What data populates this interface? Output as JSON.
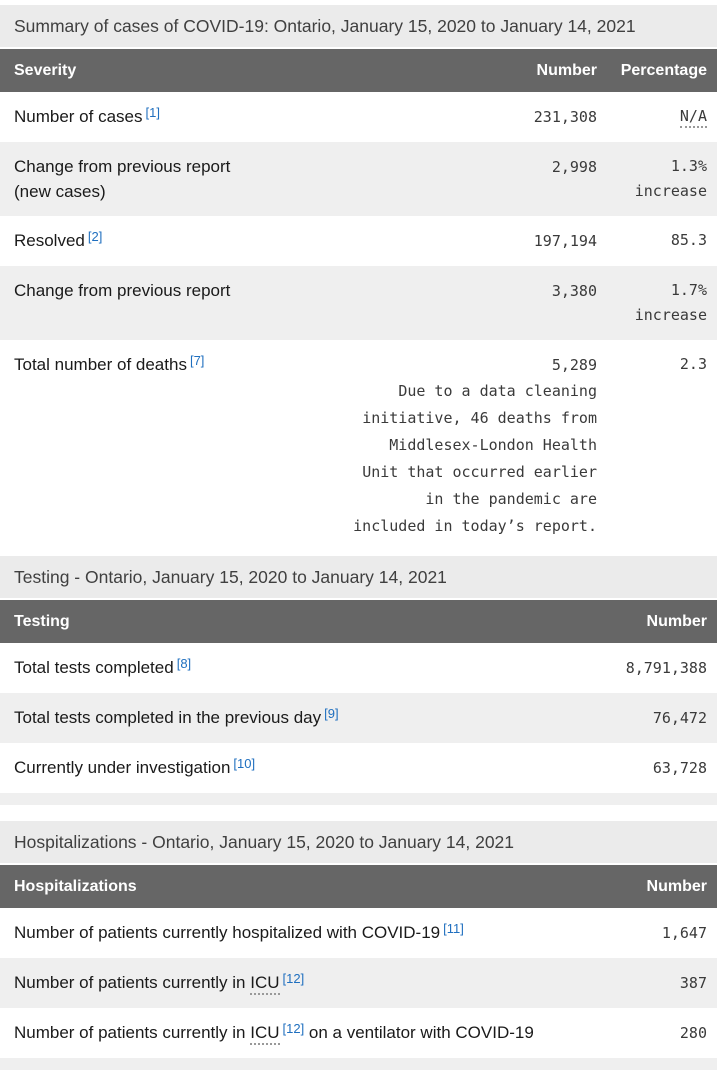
{
  "page": {
    "colors": {
      "caption_bg": "#ebebeb",
      "caption_text": "#404040",
      "header_bg": "#666666",
      "header_text": "#ffffff",
      "row_alt_bg": "#efefef",
      "label_text": "#1a1a1a",
      "value_text": "#3a3a3a",
      "link_blue": "#1f6fbf"
    }
  },
  "tables": [
    {
      "caption": "Summary of cases of COVID-19: Ontario, January 15, 2020 to January 14, 2021",
      "columns": [
        "Severity",
        "Number",
        "Percentage"
      ],
      "rows": [
        {
          "label_lines": [
            [
              {
                "t": "text",
                "v": "Number of cases"
              },
              {
                "t": "fn",
                "v": "[1]"
              }
            ]
          ],
          "number": "231,308",
          "pct_lines": [
            [
              {
                "t": "abbr",
                "v": "N/A"
              }
            ]
          ]
        },
        {
          "label_lines": [
            [
              {
                "t": "text",
                "v": "Change from previous report"
              }
            ],
            [
              {
                "t": "text",
                "v": "(new cases)"
              }
            ]
          ],
          "number": "2,998",
          "pct_lines": [
            [
              {
                "t": "text",
                "v": "1.3%"
              }
            ],
            [
              {
                "t": "text",
                "v": "increase"
              }
            ]
          ]
        },
        {
          "label_lines": [
            [
              {
                "t": "text",
                "v": "Resolved"
              },
              {
                "t": "fn",
                "v": "[2]"
              }
            ]
          ],
          "number": "197,194",
          "pct_lines": [
            [
              {
                "t": "text",
                "v": "85.3"
              }
            ]
          ]
        },
        {
          "label_lines": [
            [
              {
                "t": "text",
                "v": "Change from previous report"
              }
            ]
          ],
          "number": "3,380",
          "pct_lines": [
            [
              {
                "t": "text",
                "v": "1.7%"
              }
            ],
            [
              {
                "t": "text",
                "v": "increase"
              }
            ]
          ]
        },
        {
          "label_lines": [
            [
              {
                "t": "text",
                "v": "Total number of deaths"
              },
              {
                "t": "fn",
                "v": "[7]"
              }
            ]
          ],
          "number": "5,289",
          "number_note": "Due to a data cleaning\ninitiative, 46 deaths from\nMiddlesex-London Health\nUnit that occurred earlier\nin the pandemic are\nincluded in today’s report.",
          "pct_lines": [
            [
              {
                "t": "text",
                "v": "2.3"
              }
            ]
          ]
        }
      ]
    },
    {
      "caption": "Testing - Ontario, January 15, 2020 to January 14, 2021",
      "columns": [
        "Testing",
        "Number"
      ],
      "rows": [
        {
          "label_lines": [
            [
              {
                "t": "text",
                "v": "Total tests completed"
              },
              {
                "t": "fn",
                "v": "[8]"
              }
            ]
          ],
          "number": "8,791,388"
        },
        {
          "label_lines": [
            [
              {
                "t": "text",
                "v": "Total tests completed in the previous day"
              },
              {
                "t": "fn",
                "v": "[9]"
              }
            ]
          ],
          "number": "76,472"
        },
        {
          "label_lines": [
            [
              {
                "t": "text",
                "v": "Currently under investigation"
              },
              {
                "t": "fn",
                "v": "[10]"
              }
            ]
          ],
          "number": "63,728"
        }
      ],
      "trailing_empty_row": true
    },
    {
      "caption": "Hospitalizations - Ontario, January 15, 2020 to January 14, 2021",
      "columns": [
        "Hospitalizations",
        "Number"
      ],
      "rows": [
        {
          "label_lines": [
            [
              {
                "t": "text",
                "v": "Number of patients currently hospitalized with COVID-19"
              },
              {
                "t": "fn",
                "v": "[11]"
              }
            ]
          ],
          "number": "1,647"
        },
        {
          "label_lines": [
            [
              {
                "t": "text",
                "v": "Number of patients currently in "
              },
              {
                "t": "abbr",
                "v": "ICU"
              },
              {
                "t": "fn",
                "v": "[12]"
              }
            ]
          ],
          "number": "387"
        },
        {
          "label_lines": [
            [
              {
                "t": "text",
                "v": "Number of patients currently in "
              },
              {
                "t": "abbr",
                "v": "ICU"
              },
              {
                "t": "fn",
                "v": "[12]"
              },
              {
                "t": "text",
                "v": " on a ventilator with COVID-19"
              }
            ]
          ],
          "number": "280"
        }
      ],
      "trailing_empty_row": true
    }
  ]
}
